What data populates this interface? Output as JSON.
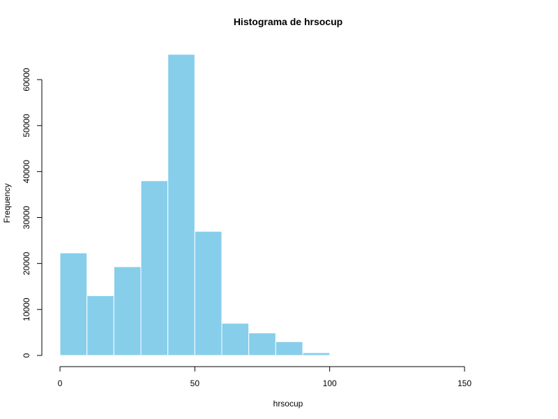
{
  "chart_data": {
    "type": "bar",
    "subtype": "histogram",
    "title": "Histograma de hrsocup",
    "xlabel": "hrsocup",
    "ylabel": "Frequency",
    "bar_color": "#87ceeb",
    "bar_border_color": "#ffffff",
    "grid": false,
    "legend": "none",
    "xlim": [
      0,
      150
    ],
    "ylim": [
      0,
      65500
    ],
    "x_ticks": [
      0,
      50,
      100,
      150
    ],
    "y_ticks": [
      0,
      10000,
      20000,
      30000,
      40000,
      50000,
      60000
    ],
    "bins": [
      {
        "x0": 0,
        "x1": 10,
        "count": 22300
      },
      {
        "x0": 10,
        "x1": 20,
        "count": 13000
      },
      {
        "x0": 20,
        "x1": 30,
        "count": 19300
      },
      {
        "x0": 30,
        "x1": 40,
        "count": 38000
      },
      {
        "x0": 40,
        "x1": 50,
        "count": 65500
      },
      {
        "x0": 50,
        "x1": 60,
        "count": 27000
      },
      {
        "x0": 60,
        "x1": 70,
        "count": 7000
      },
      {
        "x0": 70,
        "x1": 80,
        "count": 4900
      },
      {
        "x0": 80,
        "x1": 90,
        "count": 3000
      },
      {
        "x0": 90,
        "x1": 100,
        "count": 600
      }
    ]
  }
}
